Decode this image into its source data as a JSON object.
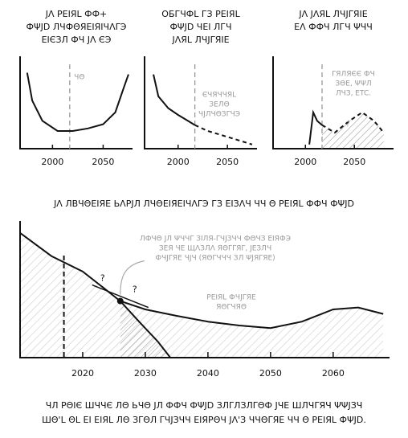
{
  "chart_data": [
    {
      "type": "line",
      "title_lines": [
        "ЈΛ РЕΙЯL ФФ+",
        "ФΨJD ЛЧФΘЯΕΙЯΙЧΛΓЭ",
        "ΕІЄЗЛ ФЧ ЈΛ ЄЭ"
      ],
      "xlim": [
        1968,
        2079
      ],
      "ylim": [
        0,
        100
      ],
      "xticks": [
        2000,
        2050
      ],
      "now": 2017,
      "now_label": "ЧΘ",
      "series": [
        {
          "x": [
            1975,
            1980,
            1990,
            2005,
            2020,
            2035,
            2050,
            2062,
            2070,
            2075
          ],
          "values": [
            90,
            57,
            33,
            21,
            21,
            24,
            29,
            43,
            71,
            88
          ],
          "dashed": false,
          "hatch": false
        }
      ]
    },
    {
      "type": "line",
      "title_lines": [
        "ОБГЧФL ГЗ РЕΙЯL",
        "ФΨJD ЧЕІ ЛГЧ",
        "ЈΛЯL ЛЧЈΓЯΙΕ"
      ],
      "xlim": [
        1966,
        2080
      ],
      "ylim": [
        0,
        100
      ],
      "xticks": [
        2000,
        2050
      ],
      "now": 2017,
      "note_lines": [
        "ЄЧЯЧЧЯL",
        "ЗЕЛΘ",
        "ЧЈЛЧΘЗΓЧЭ"
      ],
      "series": [
        {
          "x": [
            1975,
            1980,
            1990,
            2000,
            2010,
            2017
          ],
          "values": [
            88,
            62,
            48,
            40,
            33,
            28
          ],
          "dashed": false,
          "hatch": false
        },
        {
          "x": [
            2017,
            2030,
            2050,
            2075
          ],
          "values": [
            28,
            21,
            14,
            5
          ],
          "dashed": true,
          "hatch": false
        }
      ]
    },
    {
      "type": "line",
      "title_lines": [
        "ЈΛ ЈΛЯL ЛЧЈΓЯΙΕ",
        "ЕΛ ФФЧ ЛГЧ ΨЧЧ"
      ],
      "xlim": [
        1967,
        2090
      ],
      "ylim": [
        0,
        100
      ],
      "xticks": [
        2000,
        2050
      ],
      "now": 2017,
      "note_lines": [
        "ΓЯЛЯЄЄ ФЧ",
        "ЗΘЕ, ΨΨЛ",
        "ЛЧЗ, ETC."
      ],
      "mark_text": "?",
      "series": [
        {
          "x": [
            2004,
            2008,
            2012,
            2015,
            2017
          ],
          "values": [
            5,
            43,
            33,
            30,
            28
          ],
          "dashed": false,
          "hatch": false
        },
        {
          "x": [
            2017,
            2030,
            2045,
            2058,
            2070,
            2080
          ],
          "values": [
            28,
            19,
            33,
            43,
            33,
            19
          ],
          "dashed": true,
          "hatch": true
        }
      ]
    },
    {
      "type": "line",
      "title_lines": [
        "ЈΛ ЛВЧΘЕΙЯΕ ЬΛРЈЛ ЛЧΘЕΙЯΕΙЧΛΓЭ ГЗ ΕΙЗΛЧ ЧЧ Θ РЕΙЯL ФФЧ ФΨJD"
      ],
      "xlim": [
        2010,
        2069
      ],
      "ylim": [
        0,
        100
      ],
      "xticks": [
        2020,
        2030,
        2040,
        2050,
        2060
      ],
      "now": 2017,
      "note_lines": [
        "ЛФЧΘ ЈЛ ΨЧЧΓ ЗΙЛЯ-ΓЧЈЗЧЧ ФΘЧЗ ЕΙЯФЭ",
        "ЗЕЯ ЧΕ ЩΛЗЛΛ ЯΘΓΓЯΓ, ЈΕЗЛЧ",
        "ФЧЈΓЯΕ ЧЈЧ (ЯΘΓЧЧЧ ЗЛ ΨЈЯΓЯΕ)"
      ],
      "note2_lines": [
        "РЕΙЯL ФЧЈΓЯΕ",
        "ЯΘΓЧЯΘ"
      ],
      "arrow_labels": [
        "?",
        "?"
      ],
      "point": {
        "x": 2026,
        "value": 44
      },
      "series": [
        {
          "x": [
            2010,
            2015,
            2020,
            2026,
            2030,
            2035,
            2040,
            2045,
            2050,
            2055,
            2060,
            2064,
            2068
          ],
          "values": [
            97,
            79,
            67,
            44,
            37.5,
            32.5,
            28,
            25,
            23,
            28,
            37.5,
            39,
            34
          ],
          "dashed": false,
          "hatch": true
        },
        {
          "x": [
            2026,
            2029,
            2032,
            2034
          ],
          "values": [
            44,
            28,
            12.5,
            0
          ],
          "dashed": false,
          "hatch": true
        }
      ]
    }
  ],
  "caption_lines": [
    "ЧЛ РΘΙЄ ШЧЧЄ ЛΘ ЬЧΘ ЈЛ ФФЧ ФΨJD ЗЛΓЛЗЛΓΘФ ЈЧЕ ШЛЧΓЯЧ ΨΨЈЗЧ",
    "ШΘ'L ΘL ΕІ ЕΙЯL ЛΘ ЗΓΘЛ ΓЧЈЗЧЧ ΕІЯΡΘЧ ЈΛ'З ЧЧΘΓЯЕ ЧЧ Θ РЕΙЯL ФΨJD."
  ]
}
